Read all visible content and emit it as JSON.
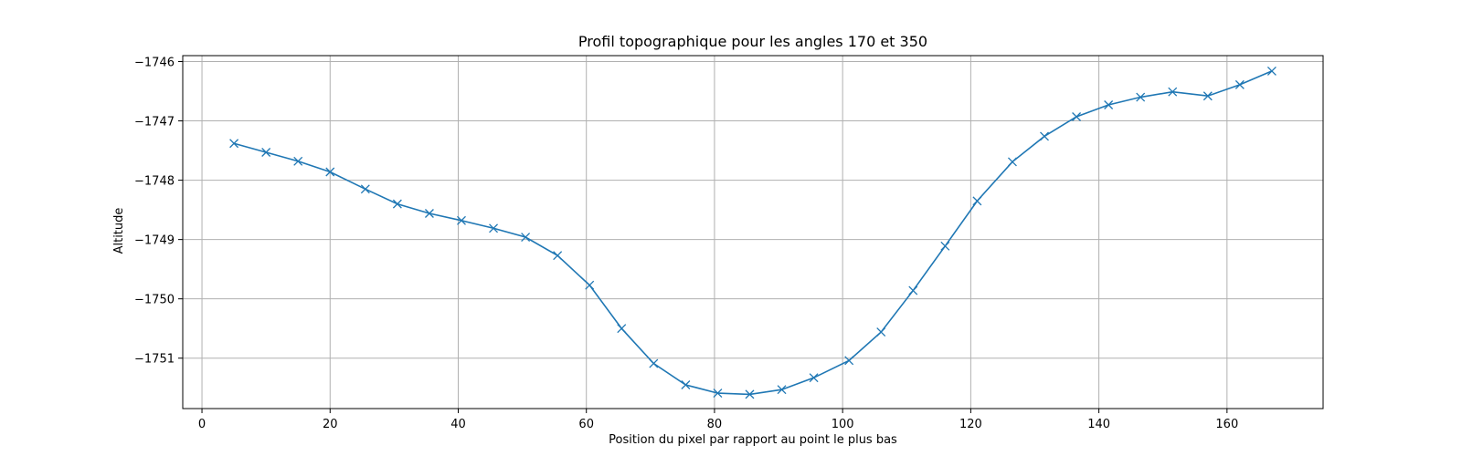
{
  "chart_data": {
    "type": "line",
    "title": "Profil topographique pour les angles 170 et 350",
    "xlabel": "Position du pixel par rapport au point le plus bas",
    "ylabel": "Altitude",
    "xlim": [
      -3,
      175
    ],
    "ylim": [
      -1751.85,
      -1745.9
    ],
    "xticks": [
      0,
      20,
      40,
      60,
      80,
      100,
      120,
      140,
      160
    ],
    "yticks": [
      -1751,
      -1750,
      -1749,
      -1748,
      -1747,
      -1746
    ],
    "grid": true,
    "series": [
      {
        "color": "#1f77b4",
        "marker": "x",
        "x": [
          5,
          10,
          15,
          20,
          25.5,
          30.5,
          35.5,
          40.5,
          45.5,
          50.5,
          55.5,
          60.5,
          65.5,
          70.5,
          75.5,
          80.5,
          85.5,
          90.5,
          95.5,
          101,
          106,
          111,
          116,
          121,
          126.5,
          131.5,
          136.5,
          141.5,
          146.5,
          151.5,
          157,
          162,
          167
        ],
        "y": [
          -1747.38,
          -1747.53,
          -1747.68,
          -1747.86,
          -1748.15,
          -1748.4,
          -1748.56,
          -1748.68,
          -1748.81,
          -1748.96,
          -1749.27,
          -1749.77,
          -1750.5,
          -1751.09,
          -1751.45,
          -1751.59,
          -1751.61,
          -1751.53,
          -1751.33,
          -1751.04,
          -1750.56,
          -1749.86,
          -1749.11,
          -1748.35,
          -1747.69,
          -1747.26,
          -1746.93,
          -1746.73,
          -1746.6,
          -1746.51,
          -1746.58,
          -1746.39,
          -1746.16
        ]
      }
    ]
  }
}
